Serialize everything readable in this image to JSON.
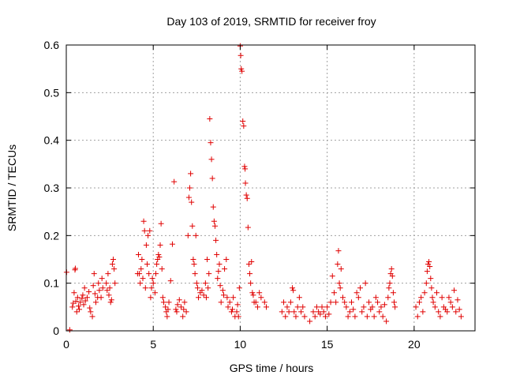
{
  "chart_data": {
    "type": "scatter",
    "title": "Day 103 of 2019, SRMTID for receiver froy",
    "xlabel": "GPS time / hours",
    "ylabel": "SRMTID / TECUs",
    "xlim": [
      0,
      23.5
    ],
    "ylim": [
      0,
      0.6
    ],
    "xticks": [
      "0",
      "5",
      "10",
      "15",
      "20"
    ],
    "xtick_values": [
      0,
      5,
      10,
      15,
      20
    ],
    "yticks": [
      "0",
      "0.1",
      "0.2",
      "0.3",
      "0.4",
      "0.5",
      "0.6"
    ],
    "ytick_values": [
      0,
      0.1,
      0.2,
      0.3,
      0.4,
      0.5,
      0.6
    ],
    "grid": true,
    "marker": "+",
    "series": [
      {
        "name": "SRMTID",
        "color": "#e00000",
        "points": [
          [
            0.02,
            0.123
          ],
          [
            0.2,
            0.002
          ],
          [
            0.35,
            0.05
          ],
          [
            0.4,
            0.058
          ],
          [
            0.45,
            0.08
          ],
          [
            0.5,
            0.128
          ],
          [
            0.52,
            0.131
          ],
          [
            0.55,
            0.062
          ],
          [
            0.6,
            0.04
          ],
          [
            0.65,
            0.07
          ],
          [
            0.7,
            0.052
          ],
          [
            0.75,
            0.045
          ],
          [
            0.8,
            0.06
          ],
          [
            0.9,
            0.068
          ],
          [
            0.95,
            0.075
          ],
          [
            1.0,
            0.055
          ],
          [
            1.05,
            0.09
          ],
          [
            1.1,
            0.063
          ],
          [
            1.2,
            0.07
          ],
          [
            1.3,
            0.082
          ],
          [
            1.35,
            0.048
          ],
          [
            1.4,
            0.04
          ],
          [
            1.5,
            0.03
          ],
          [
            1.55,
            0.095
          ],
          [
            1.6,
            0.12
          ],
          [
            1.65,
            0.078
          ],
          [
            1.7,
            0.06
          ],
          [
            1.8,
            0.07
          ],
          [
            1.85,
            0.1
          ],
          [
            1.9,
            0.085
          ],
          [
            2.0,
            0.07
          ],
          [
            2.05,
            0.11
          ],
          [
            2.1,
            0.09
          ],
          [
            2.3,
            0.1
          ],
          [
            2.35,
            0.085
          ],
          [
            2.4,
            0.12
          ],
          [
            2.45,
            0.075
          ],
          [
            2.5,
            0.09
          ],
          [
            2.55,
            0.06
          ],
          [
            2.6,
            0.065
          ],
          [
            2.65,
            0.14
          ],
          [
            2.7,
            0.15
          ],
          [
            2.75,
            0.13
          ],
          [
            2.8,
            0.1
          ],
          [
            4.1,
            0.12
          ],
          [
            4.15,
            0.16
          ],
          [
            4.2,
            0.12
          ],
          [
            4.25,
            0.1
          ],
          [
            4.3,
            0.13
          ],
          [
            4.35,
            0.15
          ],
          [
            4.4,
            0.11
          ],
          [
            4.45,
            0.23
          ],
          [
            4.5,
            0.21
          ],
          [
            4.55,
            0.09
          ],
          [
            4.6,
            0.18
          ],
          [
            4.65,
            0.14
          ],
          [
            4.7,
            0.2
          ],
          [
            4.75,
            0.12
          ],
          [
            4.8,
            0.21
          ],
          [
            4.85,
            0.07
          ],
          [
            4.9,
            0.09
          ],
          [
            4.95,
            0.11
          ],
          [
            5.0,
            0.1
          ],
          [
            5.1,
            0.08
          ],
          [
            5.15,
            0.12
          ],
          [
            5.2,
            0.14
          ],
          [
            5.25,
            0.15
          ],
          [
            5.3,
            0.16
          ],
          [
            5.35,
            0.155
          ],
          [
            5.4,
            0.18
          ],
          [
            5.45,
            0.225
          ],
          [
            5.5,
            0.13
          ],
          [
            5.55,
            0.07
          ],
          [
            5.6,
            0.06
          ],
          [
            5.7,
            0.05
          ],
          [
            5.75,
            0.04
          ],
          [
            5.8,
            0.03
          ],
          [
            5.85,
            0.045
          ],
          [
            5.9,
            0.06
          ],
          [
            6.0,
            0.105
          ],
          [
            6.1,
            0.182
          ],
          [
            6.2,
            0.313
          ],
          [
            6.3,
            0.045
          ],
          [
            6.35,
            0.04
          ],
          [
            6.4,
            0.055
          ],
          [
            6.5,
            0.065
          ],
          [
            6.6,
            0.05
          ],
          [
            6.7,
            0.03
          ],
          [
            6.75,
            0.045
          ],
          [
            6.8,
            0.06
          ],
          [
            6.9,
            0.04
          ],
          [
            7.0,
            0.2
          ],
          [
            7.05,
            0.28
          ],
          [
            7.1,
            0.3
          ],
          [
            7.15,
            0.33
          ],
          [
            7.2,
            0.27
          ],
          [
            7.25,
            0.22
          ],
          [
            7.3,
            0.15
          ],
          [
            7.35,
            0.14
          ],
          [
            7.4,
            0.12
          ],
          [
            7.45,
            0.2
          ],
          [
            7.5,
            0.1
          ],
          [
            7.55,
            0.09
          ],
          [
            7.6,
            0.07
          ],
          [
            7.7,
            0.08
          ],
          [
            7.8,
            0.085
          ],
          [
            7.9,
            0.075
          ],
          [
            8.0,
            0.1
          ],
          [
            8.05,
            0.07
          ],
          [
            8.1,
            0.15
          ],
          [
            8.15,
            0.09
          ],
          [
            8.2,
            0.12
          ],
          [
            8.25,
            0.445
          ],
          [
            8.3,
            0.395
          ],
          [
            8.35,
            0.36
          ],
          [
            8.4,
            0.32
          ],
          [
            8.45,
            0.26
          ],
          [
            8.5,
            0.23
          ],
          [
            8.55,
            0.22
          ],
          [
            8.6,
            0.19
          ],
          [
            8.65,
            0.16
          ],
          [
            8.7,
            0.11
          ],
          [
            8.75,
            0.125
          ],
          [
            8.8,
            0.14
          ],
          [
            8.85,
            0.095
          ],
          [
            8.9,
            0.06
          ],
          [
            9.0,
            0.085
          ],
          [
            9.05,
            0.075
          ],
          [
            9.1,
            0.13
          ],
          [
            9.2,
            0.15
          ],
          [
            9.25,
            0.07
          ],
          [
            9.3,
            0.05
          ],
          [
            9.4,
            0.06
          ],
          [
            9.5,
            0.04
          ],
          [
            9.55,
            0.045
          ],
          [
            9.6,
            0.07
          ],
          [
            9.7,
            0.03
          ],
          [
            9.8,
            0.04
          ],
          [
            9.85,
            0.055
          ],
          [
            9.9,
            0.03
          ],
          [
            9.95,
            0.09
          ],
          [
            10.0,
            0.598
          ],
          [
            10.03,
            0.578
          ],
          [
            10.06,
            0.55
          ],
          [
            10.1,
            0.545
          ],
          [
            10.15,
            0.44
          ],
          [
            10.2,
            0.43
          ],
          [
            10.25,
            0.345
          ],
          [
            10.28,
            0.34
          ],
          [
            10.3,
            0.31
          ],
          [
            10.35,
            0.285
          ],
          [
            10.4,
            0.278
          ],
          [
            10.45,
            0.217
          ],
          [
            10.5,
            0.14
          ],
          [
            10.55,
            0.12
          ],
          [
            10.6,
            0.1
          ],
          [
            10.65,
            0.145
          ],
          [
            10.7,
            0.08
          ],
          [
            10.75,
            0.075
          ],
          [
            10.8,
            0.06
          ],
          [
            10.9,
            0.06
          ],
          [
            11.0,
            0.05
          ],
          [
            11.1,
            0.08
          ],
          [
            11.2,
            0.07
          ],
          [
            11.4,
            0.06
          ],
          [
            11.5,
            0.05
          ],
          [
            12.4,
            0.04
          ],
          [
            12.5,
            0.06
          ],
          [
            12.6,
            0.03
          ],
          [
            12.7,
            0.05
          ],
          [
            12.8,
            0.04
          ],
          [
            12.9,
            0.06
          ],
          [
            13.0,
            0.09
          ],
          [
            13.05,
            0.085
          ],
          [
            13.1,
            0.04
          ],
          [
            13.2,
            0.03
          ],
          [
            13.3,
            0.05
          ],
          [
            13.4,
            0.07
          ],
          [
            13.5,
            0.04
          ],
          [
            13.6,
            0.05
          ],
          [
            13.7,
            0.03
          ],
          [
            14.0,
            0.02
          ],
          [
            14.2,
            0.04
          ],
          [
            14.3,
            0.03
          ],
          [
            14.4,
            0.05
          ],
          [
            14.5,
            0.04
          ],
          [
            14.6,
            0.035
          ],
          [
            14.7,
            0.05
          ],
          [
            14.8,
            0.04
          ],
          [
            14.9,
            0.03
          ],
          [
            15.0,
            0.05
          ],
          [
            15.1,
            0.035
          ],
          [
            15.2,
            0.06
          ],
          [
            15.3,
            0.115
          ],
          [
            15.4,
            0.08
          ],
          [
            15.5,
            0.06
          ],
          [
            15.6,
            0.14
          ],
          [
            15.65,
            0.168
          ],
          [
            15.7,
            0.1
          ],
          [
            15.75,
            0.09
          ],
          [
            15.8,
            0.13
          ],
          [
            15.9,
            0.07
          ],
          [
            16.0,
            0.06
          ],
          [
            16.1,
            0.05
          ],
          [
            16.2,
            0.03
          ],
          [
            16.3,
            0.04
          ],
          [
            16.4,
            0.06
          ],
          [
            16.5,
            0.045
          ],
          [
            16.6,
            0.03
          ],
          [
            16.7,
            0.08
          ],
          [
            16.8,
            0.07
          ],
          [
            16.9,
            0.09
          ],
          [
            17.0,
            0.04
          ],
          [
            17.1,
            0.05
          ],
          [
            17.2,
            0.1
          ],
          [
            17.3,
            0.03
          ],
          [
            17.4,
            0.06
          ],
          [
            17.5,
            0.045
          ],
          [
            17.6,
            0.05
          ],
          [
            17.7,
            0.03
          ],
          [
            17.8,
            0.07
          ],
          [
            17.9,
            0.06
          ],
          [
            18.0,
            0.04
          ],
          [
            18.1,
            0.05
          ],
          [
            18.2,
            0.03
          ],
          [
            18.3,
            0.055
          ],
          [
            18.4,
            0.02
          ],
          [
            18.5,
            0.07
          ],
          [
            18.55,
            0.09
          ],
          [
            18.6,
            0.1
          ],
          [
            18.65,
            0.12
          ],
          [
            18.7,
            0.13
          ],
          [
            18.75,
            0.115
          ],
          [
            18.8,
            0.08
          ],
          [
            18.85,
            0.06
          ],
          [
            18.9,
            0.05
          ],
          [
            20.1,
            0.05
          ],
          [
            20.2,
            0.03
          ],
          [
            20.3,
            0.06
          ],
          [
            20.4,
            0.07
          ],
          [
            20.5,
            0.04
          ],
          [
            20.6,
            0.08
          ],
          [
            20.7,
            0.1
          ],
          [
            20.75,
            0.125
          ],
          [
            20.8,
            0.14
          ],
          [
            20.85,
            0.145
          ],
          [
            20.9,
            0.135
          ],
          [
            20.95,
            0.11
          ],
          [
            21.0,
            0.09
          ],
          [
            21.05,
            0.07
          ],
          [
            21.1,
            0.06
          ],
          [
            21.2,
            0.05
          ],
          [
            21.3,
            0.08
          ],
          [
            21.4,
            0.04
          ],
          [
            21.5,
            0.03
          ],
          [
            21.6,
            0.07
          ],
          [
            21.7,
            0.05
          ],
          [
            21.8,
            0.045
          ],
          [
            21.9,
            0.04
          ],
          [
            22.0,
            0.07
          ],
          [
            22.1,
            0.06
          ],
          [
            22.2,
            0.05
          ],
          [
            22.3,
            0.085
          ],
          [
            22.4,
            0.04
          ],
          [
            22.5,
            0.065
          ],
          [
            22.6,
            0.045
          ],
          [
            22.7,
            0.03
          ]
        ]
      }
    ]
  }
}
